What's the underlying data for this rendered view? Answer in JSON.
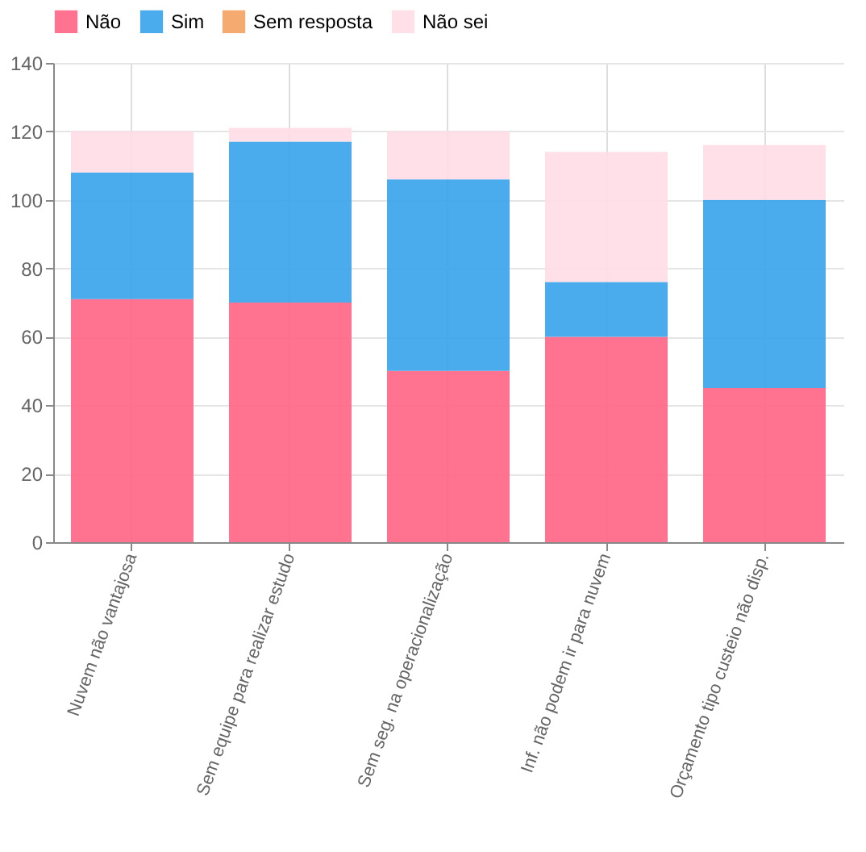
{
  "chart_data": {
    "type": "bar",
    "stacked": true,
    "categories": [
      "Nuvem não vantajosa",
      "Sem equipe para realizar estudo",
      "Sem seg. na operacionalização",
      "Inf. não podem ir para nuvem",
      "Orçamento tipo custeio não disp."
    ],
    "series": [
      {
        "name": "Não",
        "color": "#ff6384",
        "values": [
          71,
          70,
          50,
          60,
          45
        ]
      },
      {
        "name": "Sim",
        "color": "#36a2eb",
        "values": [
          37,
          47,
          56,
          16,
          55
        ]
      },
      {
        "name": "Sem resposta",
        "color": "#f4a261",
        "values": [
          0,
          0,
          0,
          0,
          0
        ]
      },
      {
        "name": "Não sei",
        "color": "#ffdce6",
        "values": [
          12,
          4,
          14,
          38,
          16
        ]
      }
    ],
    "ylim": [
      0,
      140
    ],
    "yticks": [
      0,
      20,
      40,
      60,
      80,
      100,
      120,
      140
    ],
    "grid": true,
    "legend": "top"
  }
}
